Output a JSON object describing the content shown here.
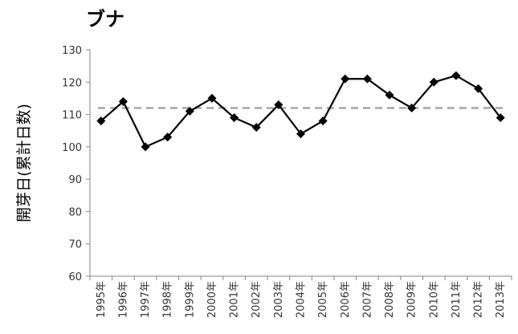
{
  "chart_data": {
    "type": "line",
    "title": "ブナ",
    "xlabel": "",
    "ylabel": "開芽日(累計日数)",
    "categories": [
      "1995年",
      "1996年",
      "1997年",
      "1998年",
      "1999年",
      "2000年",
      "2001年",
      "2002年",
      "2003年",
      "2004年",
      "2005年",
      "2006年",
      "2007年",
      "2008年",
      "2009年",
      "2010年",
      "2011年",
      "2012年",
      "2013年"
    ],
    "series": [
      {
        "values": [
          108,
          114,
          100,
          103,
          111,
          115,
          109,
          106,
          113,
          104,
          108,
          121,
          121,
          116,
          112,
          120,
          122,
          118,
          109
        ],
        "color": "#000000",
        "marker": "diamond"
      }
    ],
    "reference_line": {
      "value": 112,
      "style": "dashed",
      "color": "#a6a6a6"
    },
    "yticks": [
      60,
      70,
      80,
      90,
      100,
      110,
      120,
      130
    ],
    "ylim": [
      60,
      130
    ],
    "grid": false,
    "legend": "none"
  }
}
